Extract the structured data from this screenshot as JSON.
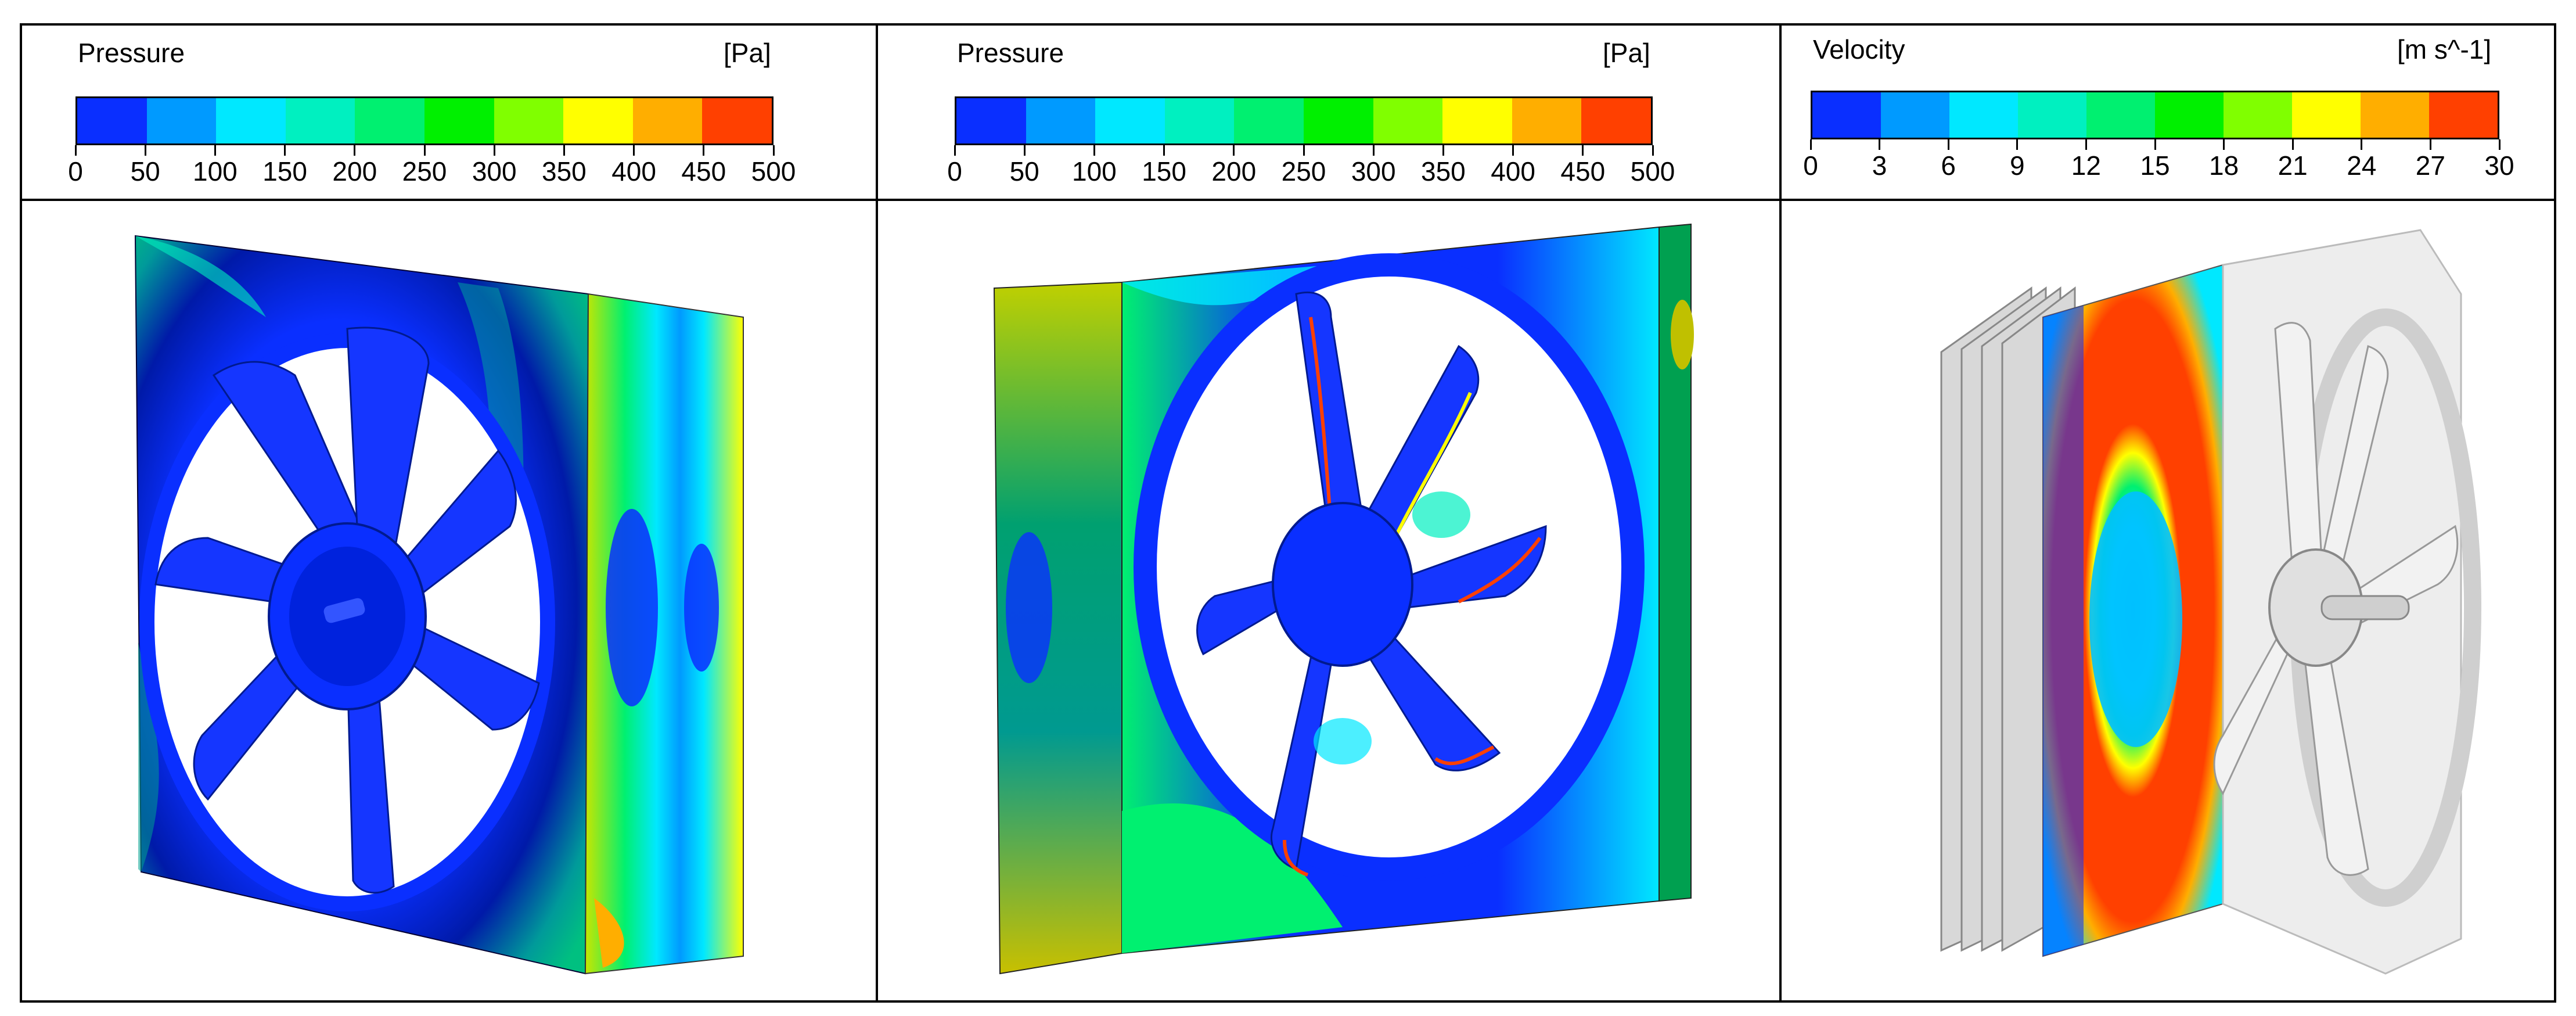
{
  "panels": [
    {
      "legend": {
        "title": "Pressure",
        "unit": "[Pa]",
        "ticks": [
          "0",
          "50",
          "100",
          "150",
          "200",
          "250",
          "300",
          "350",
          "400",
          "450",
          "500"
        ]
      }
    },
    {
      "legend": {
        "title": "Pressure",
        "unit": "[Pa]",
        "ticks": [
          "0",
          "50",
          "100",
          "150",
          "200",
          "250",
          "300",
          "350",
          "400",
          "450",
          "500"
        ]
      }
    },
    {
      "legend": {
        "title": "Velocity",
        "unit": "[m s^-1]",
        "ticks": [
          "0",
          "3",
          "6",
          "9",
          "12",
          "15",
          "18",
          "21",
          "24",
          "27",
          "30"
        ]
      }
    }
  ],
  "colormap": [
    "#0a2fff",
    "#009aff",
    "#00e8ff",
    "#00f0c0",
    "#00f070",
    "#00f000",
    "#80ff00",
    "#ffff00",
    "#ffae00",
    "#ff4000"
  ]
}
